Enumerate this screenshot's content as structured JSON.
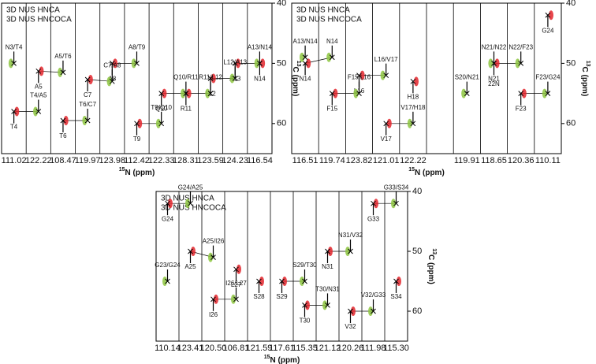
{
  "chart_data": [
    {
      "type": "strip",
      "categories": [
        "111.02",
        "122.22",
        "108.47",
        "119.97",
        "123.98",
        "112.42",
        "122.33",
        "128.31",
        "123.59",
        "124.23",
        "116.54"
      ],
      "series": [
        {
          "name": "3D NUS HNCA",
          "color": "#e3242b",
          "values": [
            58,
            51.3,
            59.5,
            52.7,
            50,
            60,
            55,
            55,
            52.5,
            50,
            50
          ],
          "labels": [
            "T4",
            "A5",
            "T6",
            "C7",
            "A8",
            "T9",
            "Q10",
            "R11",
            "L12",
            "A13",
            "N14"
          ]
        },
        {
          "name": "3D NUS HNCOCA",
          "color": "#8dc63f",
          "values": [
            50,
            58,
            51.5,
            59.5,
            53,
            50,
            60,
            55,
            55,
            52.5,
            50
          ],
          "labels": [
            "N3/T4",
            "T4/A5",
            "A5/T6",
            "T6/C7",
            "C7/A8",
            "A8/T9",
            "T9/Q10",
            "Q10/R11",
            "R11/L12",
            "L12/A13",
            "A13/N14"
          ]
        }
      ],
      "ylim": [
        40,
        65
      ],
      "yticks": [
        40,
        50,
        60
      ],
      "xlabel": [
        "15",
        "N (ppm)"
      ],
      "ylabel": [
        "13",
        "C (ppm)"
      ]
    },
    {
      "type": "strip",
      "categories": [
        "116.51",
        "119.74",
        "123.82",
        "121.01",
        "122.22",
        null,
        "119.91",
        "118.65",
        "120.36",
        "110.11"
      ],
      "series": [
        {
          "name": "3D NUS HNCA",
          "color": "#e3242b",
          "values": [
            50,
            55,
            52,
            60,
            53,
            null,
            null,
            50,
            55,
            42
          ],
          "labels": [
            "N14",
            "F15",
            "L16",
            "V17",
            "H18",
            null,
            null,
            "N21",
            "F23",
            "G24"
          ]
        },
        {
          "name": "3D NUS HNCOCA",
          "color": "#8dc63f",
          "values": [
            49,
            49,
            55,
            52,
            60,
            null,
            55,
            50,
            50,
            55
          ],
          "labels": [
            "A13/N14",
            "N14",
            "F15/L16",
            "L16/V17",
            "V17/H18",
            null,
            "S20/N21",
            "N21/N22",
            "N22/F23",
            "F23/G24"
          ]
        }
      ],
      "notes": [
        "22N"
      ],
      "ylim": [
        40,
        65
      ],
      "yticks": [
        40,
        50,
        60
      ],
      "xlabel": [
        "15",
        "N (ppm)"
      ],
      "ylabel": [
        "13",
        "C (ppm)"
      ]
    },
    {
      "type": "strip",
      "categories": [
        "110.14",
        "123.41",
        "120.50",
        "106.81",
        "121.59",
        "117.61",
        "115.35",
        "121.12",
        "120.26",
        "111.98",
        "115.30"
      ],
      "series": [
        {
          "name": "3D NUS HNCA",
          "color": "#e3242b",
          "values": [
            42,
            50,
            58,
            53,
            55,
            55,
            59,
            50,
            60,
            42,
            55
          ],
          "labels": [
            "G24",
            "A25",
            "I26",
            "L27",
            "S28",
            "S29",
            "T30",
            "N31",
            "V32",
            "G33",
            "S34"
          ]
        },
        {
          "name": "3D NUS HNCOCA",
          "color": "#8dc63f",
          "values": [
            55,
            42,
            51,
            58,
            null,
            null,
            55,
            59,
            50,
            60,
            42
          ],
          "labels": [
            "G23/G24",
            "G24/A25",
            "A25/I26",
            "I26/L27",
            null,
            null,
            "S29/T30",
            "T30/N31",
            "N31/V32",
            "V32/G33",
            "G33/S34"
          ]
        }
      ],
      "ylim": [
        40,
        65
      ],
      "yticks": [
        40,
        50,
        60
      ],
      "xlabel": [
        "15",
        "N (ppm)"
      ],
      "ylabel": [
        "13",
        "C (ppm)"
      ]
    }
  ]
}
